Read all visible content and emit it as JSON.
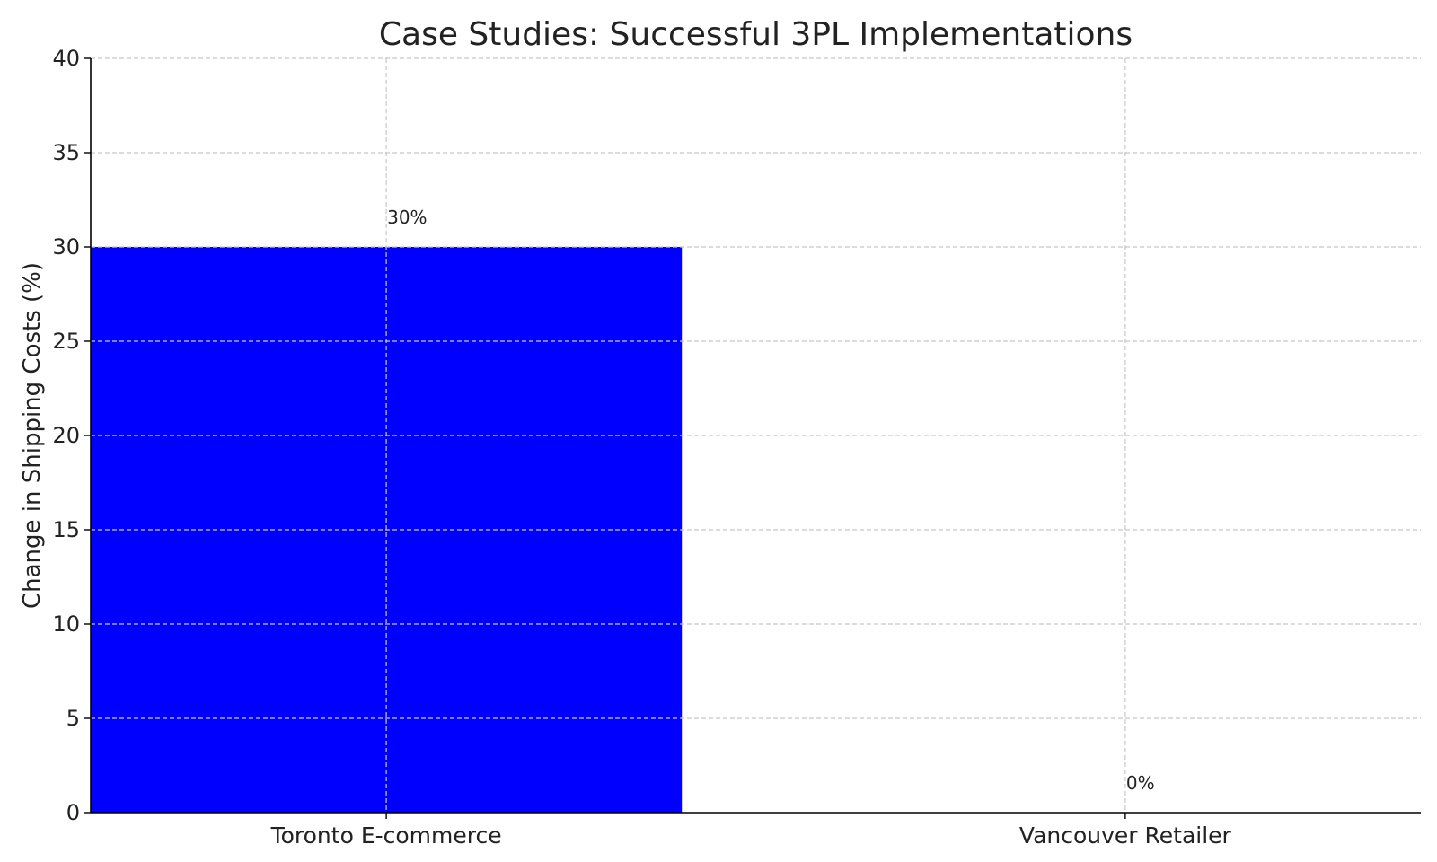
{
  "chart_data": {
    "type": "bar",
    "title": "Case Studies: Successful 3PL Implementations",
    "xlabel": "",
    "ylabel": "Change in Shipping Costs (%)",
    "categories": [
      "Toronto E-commerce",
      "Vancouver Retailer"
    ],
    "values": [
      30,
      0
    ],
    "data_labels": [
      "30%",
      "0%"
    ],
    "ylim": [
      0,
      40
    ],
    "yticks": [
      0,
      5,
      10,
      15,
      20,
      25,
      30,
      35,
      40
    ],
    "grid": true,
    "legend": "none",
    "colors": {
      "bar": "#0000ff",
      "grid": "#c8c8c8",
      "axis": "#000000",
      "text": "#222222"
    }
  }
}
